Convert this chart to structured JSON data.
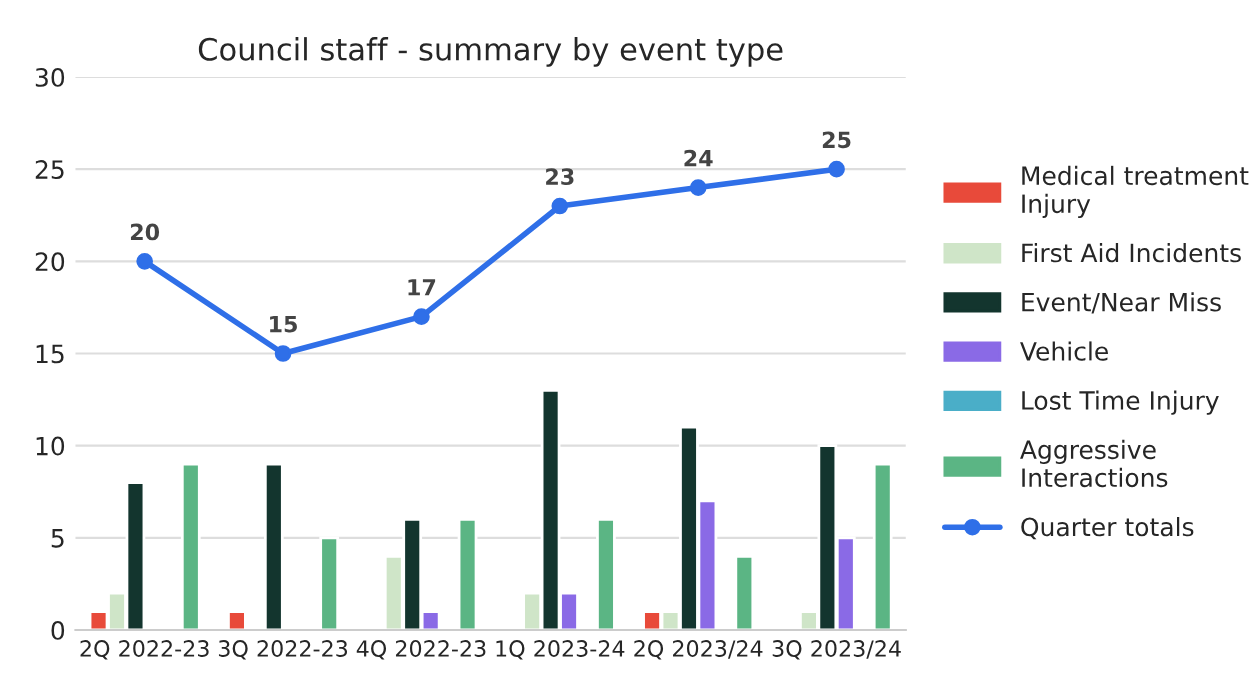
{
  "chart_data": {
    "type": "bar",
    "title": "Council staff - summary by event type",
    "categories": [
      "2Q 2022-23",
      "3Q 2022-23",
      "4Q 2022-23",
      "1Q 2023-24",
      "2Q 2023/24",
      "3Q 2023/24"
    ],
    "series": [
      {
        "name": "Medical treatment Injury",
        "color": "#e84a3a",
        "values": [
          1,
          1,
          null,
          null,
          1,
          null
        ]
      },
      {
        "name": "First Aid Incidents",
        "color": "#cfe5c8",
        "values": [
          2,
          null,
          4,
          2,
          1,
          1
        ]
      },
      {
        "name": "Event/Near Miss",
        "color": "#13352e",
        "values": [
          8,
          9,
          6,
          13,
          11,
          10
        ]
      },
      {
        "name": "Vehicle",
        "color": "#8a6ae6",
        "values": [
          null,
          null,
          1,
          2,
          7,
          5
        ]
      },
      {
        "name": "Lost Time Injury",
        "color": "#4aaec8",
        "values": [
          null,
          null,
          null,
          null,
          null,
          null
        ]
      },
      {
        "name": "Aggressive Interactions",
        "color": "#5bb584",
        "values": [
          9,
          5,
          6,
          6,
          4,
          9
        ]
      },
      {
        "name": "Quarter totals",
        "type": "line",
        "color": "#2f6fe8",
        "marker": "circle",
        "data_labels": true,
        "values": [
          20,
          15,
          17,
          23,
          24,
          25
        ]
      }
    ],
    "ylim": [
      0,
      30
    ],
    "yticks": [
      0,
      5,
      10,
      15,
      20,
      25,
      30
    ],
    "grid": "y",
    "legend": "right"
  }
}
